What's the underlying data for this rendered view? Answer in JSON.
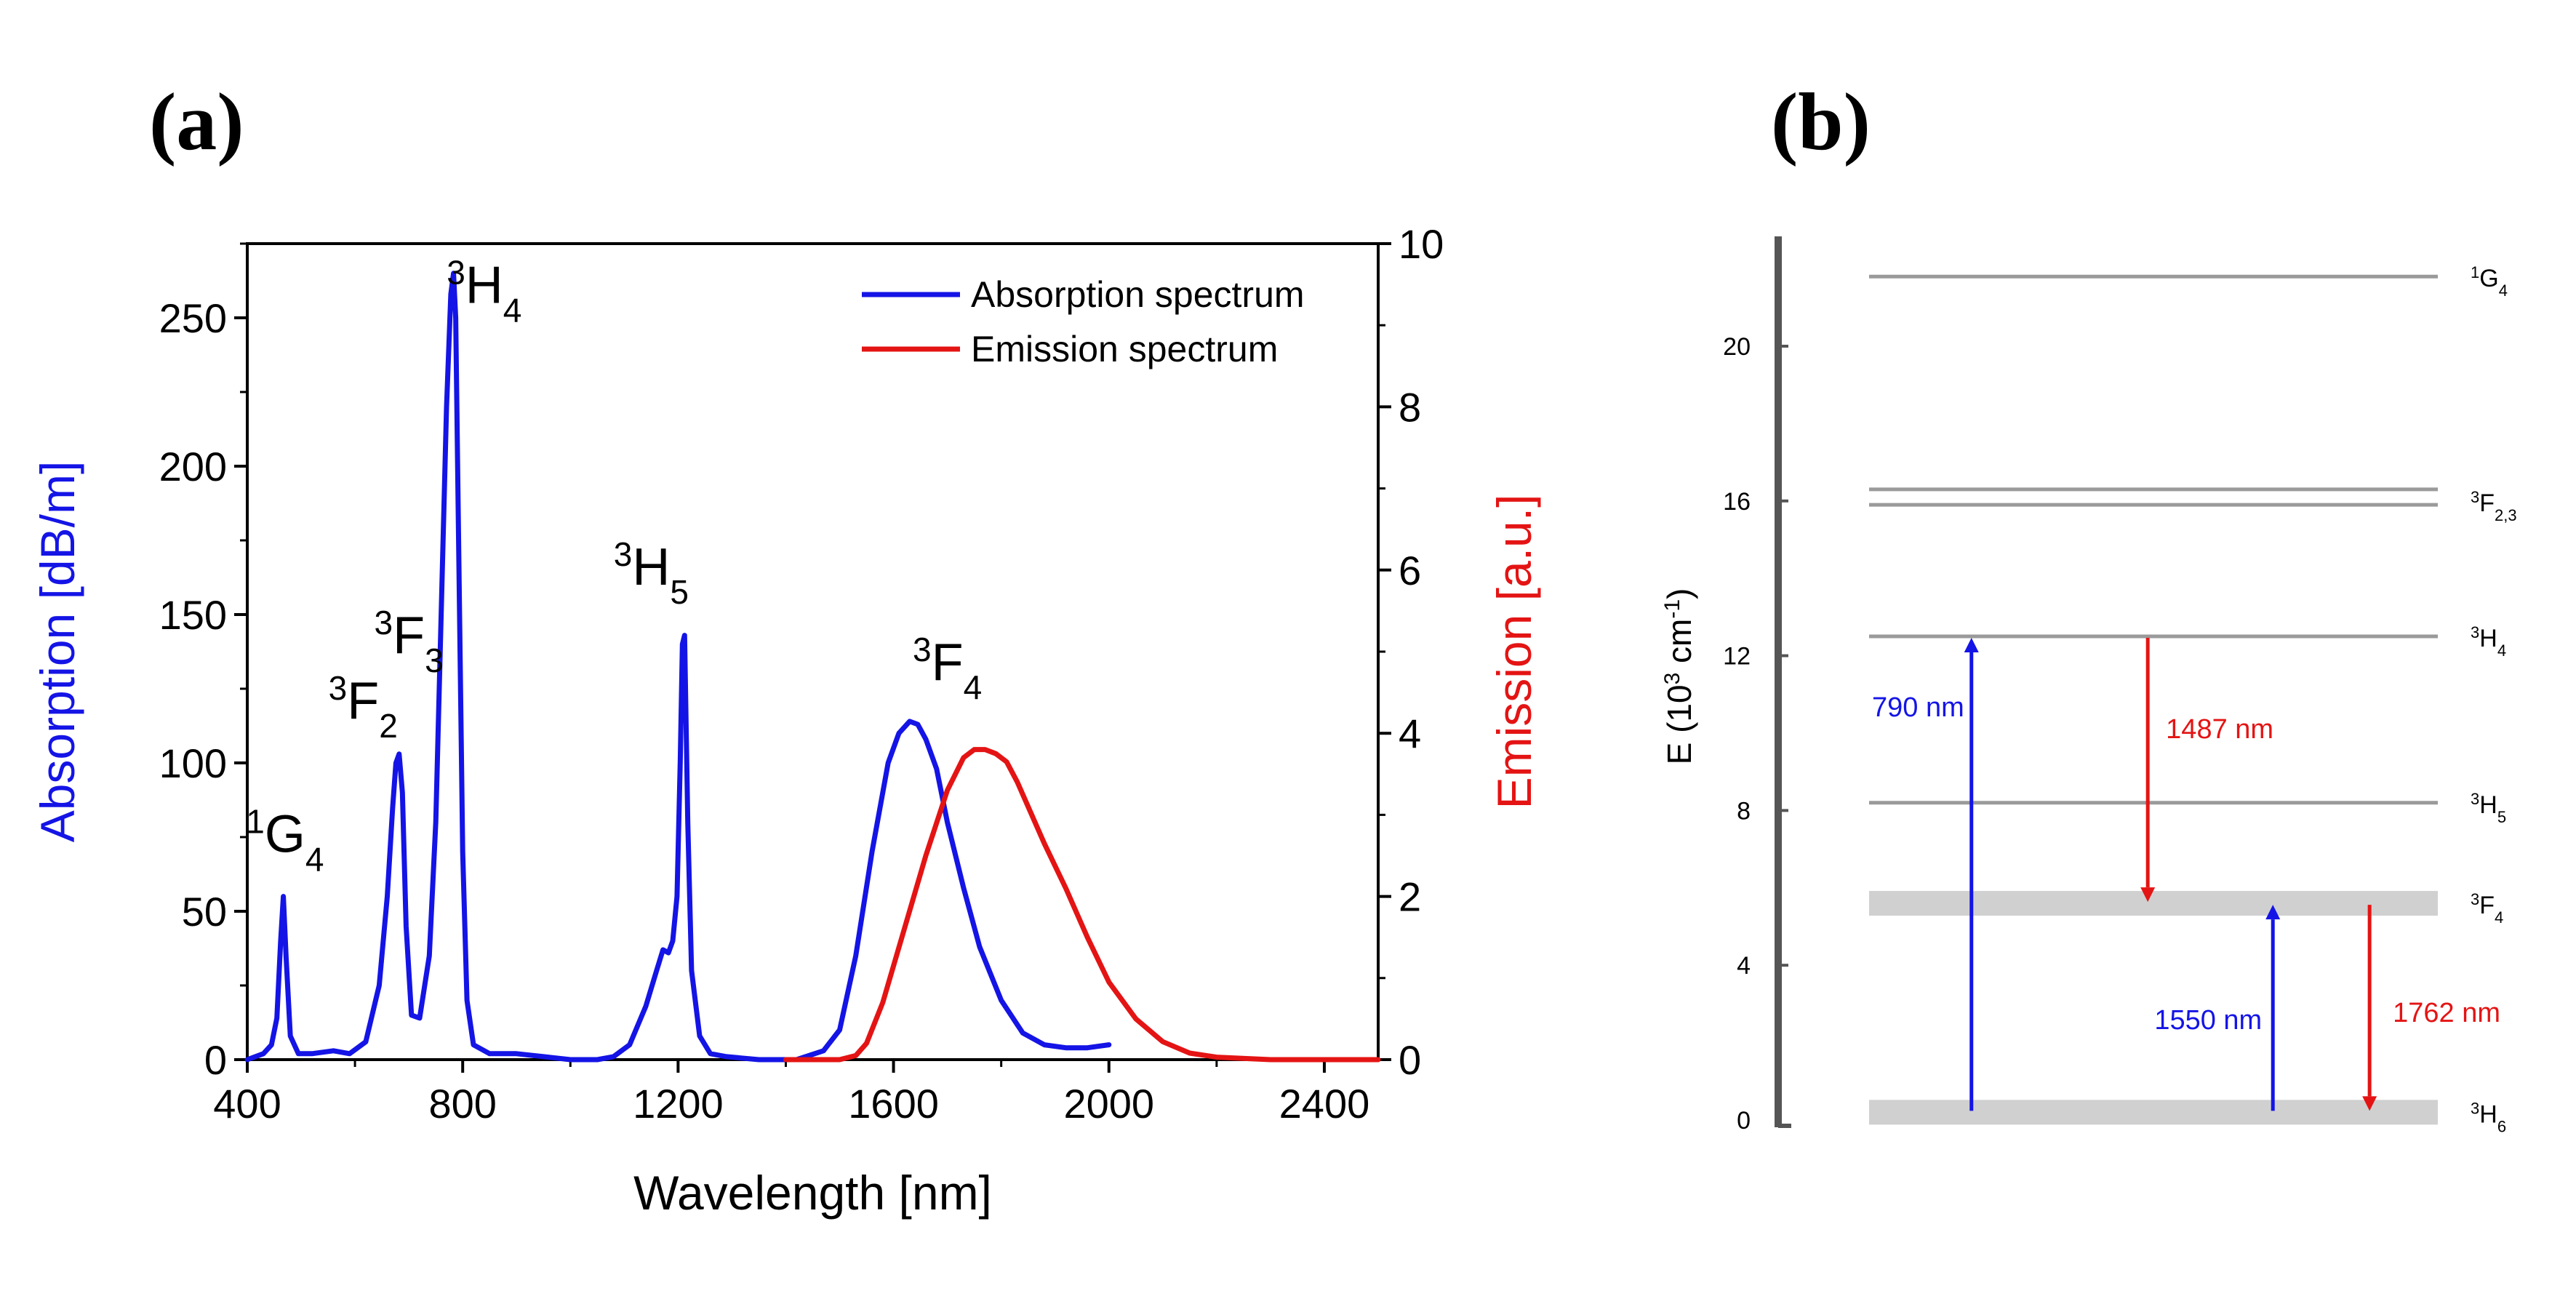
{
  "panel_a_label": "(a)",
  "panel_b_label": "(b)",
  "colors": {
    "absorption": "#1414e6",
    "emission": "#e41414",
    "level": "#9a9a9a",
    "band": "#d0d0d0"
  },
  "chart_data": [
    {
      "type": "line",
      "title": "",
      "xlabel": "Wavelength [nm]",
      "ylabel": "Absorption [dB/m]",
      "ylabel_right": "Emission [a.u.]",
      "xlim": [
        400,
        2500
      ],
      "ylim": [
        0,
        275
      ],
      "ylim_right": [
        0,
        10
      ],
      "xticks": [
        400,
        800,
        1200,
        1600,
        2000,
        2400
      ],
      "yticks": [
        0,
        50,
        100,
        150,
        200,
        250
      ],
      "yticks_right": [
        0,
        2,
        4,
        6,
        8,
        10
      ],
      "legend_position": "top-right",
      "series": [
        {
          "name": "Absorption spectrum",
          "axis": "left",
          "x": [
            400,
            430,
            445,
            455,
            462,
            467,
            472,
            480,
            495,
            520,
            560,
            590,
            620,
            645,
            660,
            670,
            676,
            682,
            688,
            695,
            705,
            720,
            738,
            750,
            760,
            770,
            778,
            783,
            787,
            792,
            800,
            808,
            820,
            850,
            900,
            950,
            1000,
            1050,
            1080,
            1110,
            1140,
            1160,
            1172,
            1182,
            1190,
            1198,
            1204,
            1208,
            1212,
            1218,
            1225,
            1240,
            1260,
            1290,
            1350,
            1420,
            1470,
            1500,
            1530,
            1560,
            1590,
            1610,
            1630,
            1645,
            1660,
            1680,
            1700,
            1730,
            1760,
            1800,
            1840,
            1880,
            1920,
            1960,
            2000
          ],
          "y": [
            0,
            2,
            5,
            14,
            40,
            55,
            35,
            8,
            2,
            2,
            3,
            2,
            6,
            25,
            55,
            85,
            100,
            103,
            90,
            45,
            15,
            14,
            35,
            80,
            150,
            220,
            258,
            265,
            250,
            180,
            70,
            20,
            5,
            2,
            2,
            1,
            0,
            0,
            1,
            5,
            18,
            30,
            37,
            36,
            40,
            55,
            100,
            140,
            143,
            80,
            30,
            8,
            2,
            1,
            0,
            0,
            3,
            10,
            35,
            70,
            100,
            110,
            114,
            113,
            108,
            98,
            80,
            58,
            38,
            20,
            9,
            5,
            4,
            4,
            5
          ]
        },
        {
          "name": "Emission spectrum",
          "axis": "right",
          "x": [
            1400,
            1500,
            1530,
            1550,
            1580,
            1620,
            1660,
            1700,
            1730,
            1750,
            1770,
            1790,
            1810,
            1830,
            1850,
            1880,
            1920,
            1960,
            2000,
            2050,
            2100,
            2150,
            2200,
            2300,
            2400,
            2500
          ],
          "y": [
            0,
            0,
            0.05,
            0.2,
            0.7,
            1.6,
            2.5,
            3.3,
            3.7,
            3.8,
            3.8,
            3.75,
            3.65,
            3.4,
            3.1,
            2.65,
            2.1,
            1.5,
            0.95,
            0.5,
            0.22,
            0.08,
            0.03,
            0,
            0,
            0
          ]
        }
      ],
      "annotations": [
        {
          "main": "G",
          "pre": "1",
          "sub": "4",
          "x": 470,
          "y": 70
        },
        {
          "main": "F",
          "pre": "3",
          "sub": "2",
          "x": 615,
          "y": 115
        },
        {
          "main": "F",
          "pre": "3",
          "sub": "3",
          "x": 700,
          "y": 137
        },
        {
          "main": "H",
          "pre": "3",
          "sub": "4",
          "x": 840,
          "y": 255
        },
        {
          "main": "H",
          "pre": "3",
          "sub": "5",
          "x": 1150,
          "y": 160
        },
        {
          "main": "F",
          "pre": "3",
          "sub": "4",
          "x": 1700,
          "y": 128
        }
      ]
    },
    {
      "type": "diagram",
      "title": "",
      "ylabel_prefix": "E (10",
      "ylabel_sup": "3",
      "ylabel_mid": " cm",
      "ylabel_sup2": "-1",
      "ylabel_suffix": ")",
      "ylim": [
        0,
        23
      ],
      "yticks": [
        0,
        4,
        8,
        12,
        16,
        20
      ],
      "levels": [
        {
          "energy": 21.8,
          "label": "G",
          "pre": "1",
          "sub": "4",
          "style": "line"
        },
        {
          "energy": 16.3,
          "label": "F",
          "pre": "3",
          "sub": "2,3",
          "style": "line"
        },
        {
          "energy": 15.9,
          "label": "",
          "pre": "",
          "sub": "",
          "style": "line"
        },
        {
          "energy": 12.5,
          "label": "H",
          "pre": "3",
          "sub": "4",
          "style": "line"
        },
        {
          "energy": 8.2,
          "label": "H",
          "pre": "3",
          "sub": "5",
          "style": "line"
        },
        {
          "energy": 5.6,
          "label": "F",
          "pre": "3",
          "sub": "4",
          "style": "band"
        },
        {
          "energy": 0.2,
          "label": "H",
          "pre": "3",
          "sub": "6",
          "style": "band"
        }
      ],
      "transitions": [
        {
          "label": "790 nm",
          "from": 0.2,
          "to": 12.5,
          "color": "#1414e6",
          "x": 0.18
        },
        {
          "label": "1487 nm",
          "from": 12.5,
          "to": 5.6,
          "color": "#e41414",
          "x": 0.49
        },
        {
          "label": "1550 nm",
          "from": 0.2,
          "to": 5.6,
          "color": "#1414e6",
          "x": 0.71
        },
        {
          "label": "1762 nm",
          "from": 5.6,
          "to": 0.2,
          "color": "#e41414",
          "x": 0.88
        }
      ]
    }
  ]
}
